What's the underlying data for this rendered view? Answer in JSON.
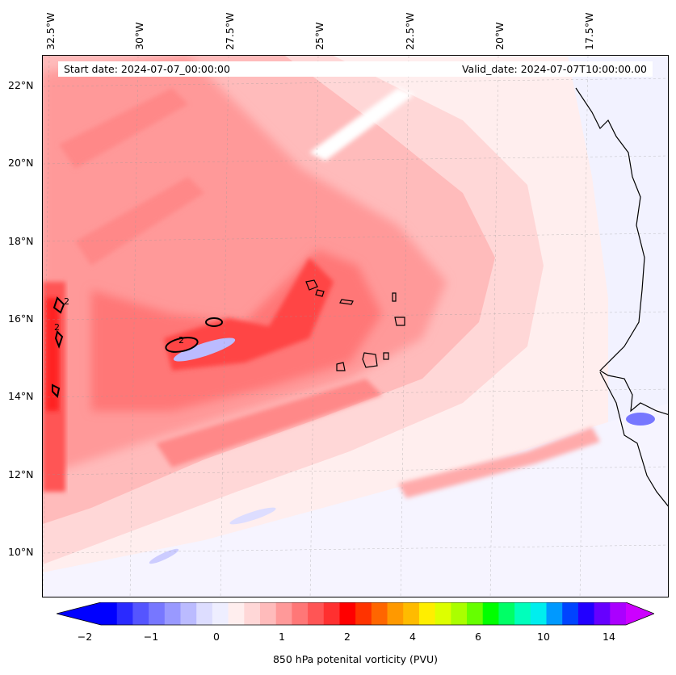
{
  "map": {
    "start_date": "Start date: 2024-07-07_00:00:00",
    "valid_date": "Valid_date: 2024-07-07T10:00:00.00",
    "longitude_labels": [
      "32.5°W",
      "30°W",
      "27.5°W",
      "25°W",
      "22.5°W",
      "20°W",
      "17.5°W"
    ],
    "latitude_labels": [
      "22°N",
      "20°N",
      "18°N",
      "16°N",
      "14°N",
      "12°N",
      "10°N"
    ],
    "contour_label": "2",
    "variable": "850 hPa potenital vorticity (PVU)"
  },
  "colorbar": {
    "tick_labels": [
      "−2",
      "−1",
      "0",
      "1",
      "2",
      "4",
      "6",
      "10",
      "14"
    ],
    "colors": [
      "#0000ff",
      "#2a2aff",
      "#5555ff",
      "#7777ff",
      "#9999ff",
      "#bbbbff",
      "#ddddff",
      "#eeeeff",
      "#ffeeee",
      "#ffd7d7",
      "#ffbbbb",
      "#ff9999",
      "#ff7777",
      "#ff5555",
      "#ff3030",
      "#ff0000",
      "#ff3300",
      "#ff6600",
      "#ff9900",
      "#ffbb00",
      "#ffee00",
      "#ddff00",
      "#aaff00",
      "#66ff00",
      "#00ff00",
      "#00ff66",
      "#00ffbb",
      "#00eeee",
      "#0099ff",
      "#0044ff",
      "#2200ff",
      "#6600ff",
      "#aa00ff"
    ],
    "under_color": "#0000ff",
    "over_color": "#cc00ff"
  }
}
